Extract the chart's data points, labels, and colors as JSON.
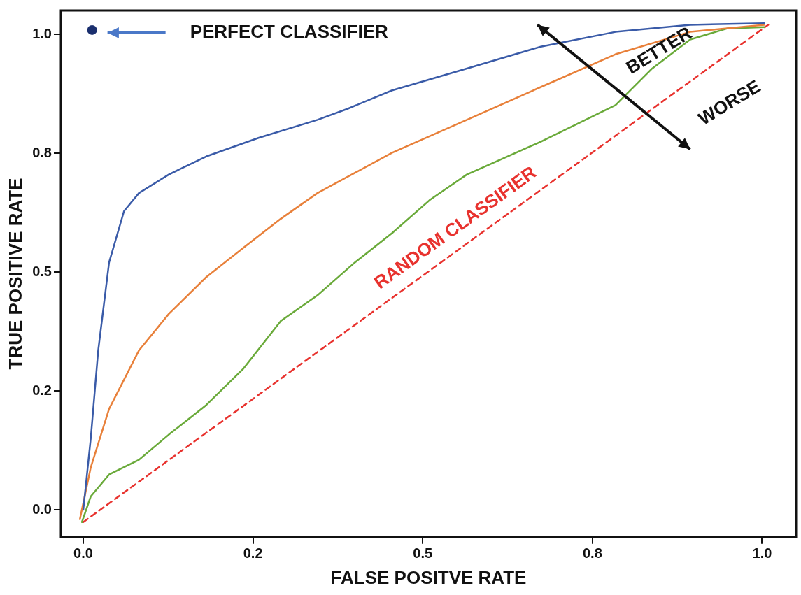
{
  "chart_data": {
    "type": "line",
    "xlabel": "FALSE POSITVE RATE",
    "ylabel": "TRUE POSITIVE RATE",
    "xlim": [
      -0.033,
      1.05
    ],
    "ylim": [
      -0.057,
      1.05
    ],
    "xticks": [
      {
        "value": 0,
        "label": "0.0"
      },
      {
        "value": 0.25,
        "label": "0.2"
      },
      {
        "value": 0.5,
        "label": "0.5"
      },
      {
        "value": 0.75,
        "label": "0.8"
      },
      {
        "value": 1,
        "label": "1.0"
      }
    ],
    "yticks": [
      {
        "value": 0,
        "label": "0.0"
      },
      {
        "value": 0.25,
        "label": "0.2"
      },
      {
        "value": 0.5,
        "label": "0.5"
      },
      {
        "value": 0.75,
        "label": "0.8"
      },
      {
        "value": 1,
        "label": "1.0"
      }
    ],
    "grid": false,
    "legend": false,
    "marker": "none",
    "line_style": "solid",
    "series": [
      {
        "color": "#3a5ba8",
        "x": [
          0,
          0.011,
          0.022,
          0.038,
          0.06,
          0.082,
          0.126,
          0.181,
          0.258,
          0.345,
          0.389,
          0.455,
          0.565,
          0.674,
          0.784,
          0.894,
          1.003
        ],
        "values": [
          0,
          0.15,
          0.335,
          0.52,
          0.628,
          0.666,
          0.705,
          0.743,
          0.782,
          0.82,
          0.843,
          0.882,
          0.928,
          0.974,
          1.005,
          1.02,
          1.023
        ]
      },
      {
        "color": "#e8803a",
        "x": [
          -0.005,
          0.011,
          0.038,
          0.082,
          0.126,
          0.181,
          0.236,
          0.291,
          0.345,
          0.455,
          0.565,
          0.674,
          0.784,
          0.894,
          1.003
        ],
        "values": [
          -0.02,
          0.089,
          0.212,
          0.335,
          0.412,
          0.489,
          0.551,
          0.612,
          0.666,
          0.751,
          0.82,
          0.889,
          0.958,
          1.005,
          1.02
        ]
      },
      {
        "color": "#6aaa3a",
        "x": [
          -0.002,
          0.011,
          0.038,
          0.082,
          0.126,
          0.181,
          0.236,
          0.291,
          0.345,
          0.4,
          0.455,
          0.51,
          0.565,
          0.674,
          0.784,
          0.838,
          0.894,
          0.948,
          1.003
        ],
        "values": [
          -0.026,
          0.028,
          0.074,
          0.105,
          0.158,
          0.22,
          0.297,
          0.397,
          0.451,
          0.52,
          0.582,
          0.651,
          0.705,
          0.774,
          0.851,
          0.928,
          0.989,
          1.012,
          1.015
        ]
      },
      {
        "name": "RANDOM CLASSIFIER",
        "color": "#e8322e",
        "line_style": "dashed",
        "x": [
          0,
          1.009
        ],
        "values": [
          -0.026,
          1.02
        ]
      },
      {
        "type": "scatter",
        "marker": "circle",
        "color": "#1a2f6e",
        "x": [
          0.013
        ],
        "values": [
          1.009
        ]
      }
    ],
    "annotations": [
      "PERFECT CLASSIFIER",
      "BETTER",
      "WORSE"
    ]
  }
}
